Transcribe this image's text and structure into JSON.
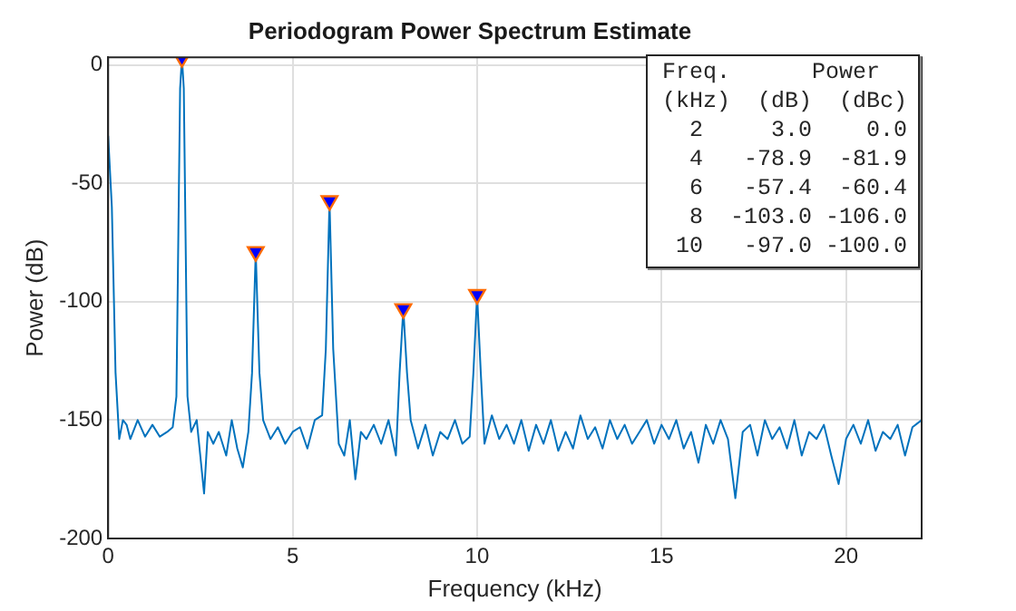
{
  "chart_data": {
    "type": "line",
    "title": "Periodogram Power Spectrum Estimate",
    "xlabel": "Frequency (kHz)",
    "ylabel": "Power (dB)",
    "xlim": [
      0,
      22.05
    ],
    "xticks": [
      0,
      5,
      10,
      15,
      20
    ],
    "ylim": [
      -200,
      3.2
    ],
    "yticks": [
      -200,
      -150,
      -100,
      -50,
      0
    ],
    "grid": true,
    "legend": false,
    "series": [
      {
        "type": "line",
        "color": "#0072bd",
        "marker": "none",
        "x": [
          0,
          0.1,
          0.2,
          0.3,
          0.4,
          0.5,
          0.6,
          0.8,
          1.0,
          1.2,
          1.4,
          1.6,
          1.75,
          1.85,
          1.95,
          2.0,
          2.05,
          2.15,
          2.25,
          2.4,
          2.6,
          2.7,
          2.85,
          3.0,
          3.2,
          3.35,
          3.5,
          3.65,
          3.8,
          3.9,
          4.0,
          4.1,
          4.2,
          4.4,
          4.6,
          4.8,
          5.0,
          5.2,
          5.4,
          5.6,
          5.8,
          5.9,
          6.0,
          6.1,
          6.25,
          6.4,
          6.55,
          6.7,
          6.85,
          7.0,
          7.2,
          7.4,
          7.6,
          7.8,
          7.9,
          8.0,
          8.1,
          8.2,
          8.4,
          8.6,
          8.8,
          9.0,
          9.2,
          9.4,
          9.6,
          9.8,
          9.9,
          10.0,
          10.1,
          10.2,
          10.4,
          10.6,
          10.8,
          11.0,
          11.2,
          11.4,
          11.6,
          11.8,
          12.0,
          12.2,
          12.4,
          12.6,
          12.8,
          13.0,
          13.2,
          13.4,
          13.6,
          13.8,
          14.0,
          14.2,
          14.4,
          14.6,
          14.8,
          15.0,
          15.2,
          15.4,
          15.6,
          15.8,
          16.0,
          16.2,
          16.4,
          16.6,
          16.8,
          17.0,
          17.2,
          17.4,
          17.6,
          17.8,
          18.0,
          18.2,
          18.4,
          18.6,
          18.8,
          19.0,
          19.2,
          19.4,
          19.6,
          19.8,
          20.0,
          20.2,
          20.4,
          20.6,
          20.8,
          21.0,
          21.2,
          21.4,
          21.6,
          21.8,
          22.05
        ],
        "values": [
          -30,
          -60,
          -130,
          -158,
          -150,
          -152,
          -158,
          -150,
          -157,
          -152,
          -157,
          -155,
          -153,
          -140,
          -10,
          3,
          -10,
          -140,
          -155,
          -150,
          -181,
          -155,
          -160,
          -155,
          -165,
          -150,
          -162,
          -170,
          -155,
          -130,
          -78.9,
          -130,
          -150,
          -158,
          -153,
          -160,
          -155,
          -153,
          -162,
          -150,
          -148,
          -120,
          -57.4,
          -120,
          -160,
          -165,
          -150,
          -175,
          -155,
          -158,
          -152,
          -160,
          -150,
          -165,
          -130,
          -103,
          -130,
          -150,
          -162,
          -152,
          -165,
          -155,
          -158,
          -150,
          -160,
          -157,
          -130,
          -97,
          -130,
          -160,
          -148,
          -158,
          -152,
          -160,
          -150,
          -163,
          -152,
          -160,
          -150,
          -163,
          -155,
          -162,
          -148,
          -158,
          -153,
          -162,
          -150,
          -158,
          -152,
          -160,
          -155,
          -150,
          -160,
          -152,
          -158,
          -150,
          -162,
          -155,
          -168,
          -152,
          -160,
          -150,
          -158,
          -183,
          -155,
          -152,
          -165,
          -150,
          -158,
          -153,
          -162,
          -150,
          -165,
          -155,
          -158,
          -152,
          -165,
          -177,
          -158,
          -152,
          -160,
          -150,
          -163,
          -155,
          -158,
          -152,
          -165,
          -153,
          -150
        ]
      },
      {
        "type": "scatter",
        "color": "#0000ff",
        "marker": "triangle",
        "x": [
          2,
          4,
          6,
          8,
          10
        ],
        "values": [
          3.0,
          -78.9,
          -57.4,
          -103.0,
          -97.0
        ]
      }
    ],
    "annotations": [
      "Freq.      Power",
      "(kHz)  (dB)  (dBc)",
      "  2     3.0    0.0",
      "  4   -78.9  -81.9",
      "  6   -57.4  -60.4",
      "  8  -103.0 -106.0",
      " 10   -97.0 -100.0"
    ]
  }
}
